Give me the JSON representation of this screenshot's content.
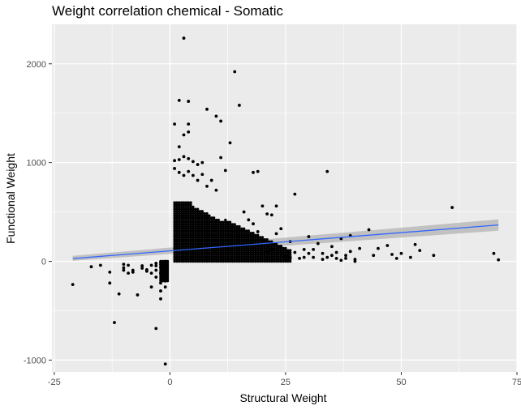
{
  "chart_data": {
    "type": "scatter",
    "title": "Weight correlation chemical - Somatic",
    "xlabel": "Structural Weight",
    "ylabel": "Functional Weight",
    "xlim": [
      -25.5,
      75
    ],
    "ylim": [
      -1120,
      2400
    ],
    "x_ticks": [
      -25,
      0,
      25,
      50,
      75
    ],
    "x_tick_labels": [
      "-25",
      "0",
      "25",
      "50",
      "75"
    ],
    "y_ticks": [
      -1000,
      0,
      1000,
      2000
    ],
    "y_tick_labels": [
      "-1000",
      "0",
      "1000",
      "2000"
    ],
    "grid": true,
    "legend": "none",
    "colors": {
      "panel": "#ebebeb",
      "grid": "#ffffff",
      "points": "#000000",
      "trend_line": "#3366ff",
      "confidence_band": "#b3b3b3"
    },
    "trend_line": {
      "method": "linear",
      "x": [
        -21,
        71
      ],
      "y": [
        28,
        368
      ],
      "ci_lower": [
        5,
        310
      ],
      "ci_upper": [
        55,
        425
      ]
    },
    "points": [
      [
        -21,
        -235
      ],
      [
        -17,
        -55
      ],
      [
        -15,
        -40
      ],
      [
        -13,
        -110
      ],
      [
        -13,
        -220
      ],
      [
        -12,
        -620
      ],
      [
        -11,
        -330
      ],
      [
        -10,
        -30
      ],
      [
        -10,
        -65
      ],
      [
        -10,
        -90
      ],
      [
        -9,
        -40
      ],
      [
        -9,
        -120
      ],
      [
        -8,
        -90
      ],
      [
        -8,
        -110
      ],
      [
        -7,
        -340
      ],
      [
        -6,
        -45
      ],
      [
        -6,
        -70
      ],
      [
        -5,
        -85
      ],
      [
        -5,
        -100
      ],
      [
        -4,
        -40
      ],
      [
        -4,
        -120
      ],
      [
        -4,
        -260
      ],
      [
        -3,
        -20
      ],
      [
        -3,
        -45
      ],
      [
        -3,
        -90
      ],
      [
        -3,
        -160
      ],
      [
        -3,
        -680
      ],
      [
        -2,
        -5
      ],
      [
        -2,
        -30
      ],
      [
        -2,
        -60
      ],
      [
        -2,
        -120
      ],
      [
        -2,
        -220
      ],
      [
        -2,
        -300
      ],
      [
        -2,
        -380
      ],
      [
        -1,
        0
      ],
      [
        -1,
        -15
      ],
      [
        -1,
        -40
      ],
      [
        -1,
        -80
      ],
      [
        -1,
        -140
      ],
      [
        -1,
        -200
      ],
      [
        -1,
        -260
      ],
      [
        -1,
        -1040
      ],
      [
        1,
        1390
      ],
      [
        1,
        1020
      ],
      [
        1,
        940
      ],
      [
        2,
        1630
      ],
      [
        2,
        1160
      ],
      [
        2,
        1030
      ],
      [
        2,
        900
      ],
      [
        3,
        2260
      ],
      [
        3,
        1280
      ],
      [
        3,
        1060
      ],
      [
        3,
        870
      ],
      [
        4,
        1620
      ],
      [
        4,
        1390
      ],
      [
        4,
        1310
      ],
      [
        4,
        1040
      ],
      [
        4,
        910
      ],
      [
        5,
        1010
      ],
      [
        5,
        870
      ],
      [
        6,
        980
      ],
      [
        6,
        820
      ],
      [
        7,
        1000
      ],
      [
        7,
        880
      ],
      [
        8,
        1540
      ],
      [
        8,
        760
      ],
      [
        9,
        820
      ],
      [
        10,
        1470
      ],
      [
        10,
        720
      ],
      [
        11,
        1420
      ],
      [
        11,
        1050
      ],
      [
        12,
        920
      ],
      [
        13,
        1200
      ],
      [
        14,
        1920
      ],
      [
        15,
        1580
      ],
      [
        18,
        900
      ],
      [
        19,
        910
      ],
      [
        23,
        560
      ],
      [
        27,
        680
      ],
      [
        34,
        910
      ],
      [
        61,
        545
      ],
      [
        70,
        80
      ],
      [
        71,
        15
      ],
      [
        43,
        320
      ],
      [
        39,
        260
      ],
      [
        37,
        230
      ],
      [
        32,
        180
      ],
      [
        30,
        250
      ],
      [
        29,
        120
      ],
      [
        35,
        150
      ],
      [
        40,
        0
      ],
      [
        45,
        130
      ],
      [
        47,
        160
      ],
      [
        48,
        70
      ],
      [
        49,
        30
      ],
      [
        50,
        80
      ],
      [
        53,
        170
      ],
      [
        54,
        110
      ],
      [
        57,
        60
      ],
      [
        52,
        40
      ],
      [
        44,
        60
      ],
      [
        41,
        130
      ],
      [
        38,
        60
      ],
      [
        36,
        30
      ],
      [
        33,
        80
      ],
      [
        31,
        40
      ],
      [
        28,
        30
      ],
      [
        27,
        90
      ],
      [
        26,
        40
      ],
      [
        25,
        20
      ],
      [
        24,
        330
      ],
      [
        22,
        470
      ],
      [
        20,
        560
      ],
      [
        21,
        480
      ],
      [
        17,
        420
      ],
      [
        16,
        500
      ],
      [
        18,
        380
      ],
      [
        19,
        300
      ],
      [
        23,
        280
      ],
      [
        24,
        150
      ],
      [
        22,
        120
      ],
      [
        20,
        200
      ],
      [
        21,
        100
      ],
      [
        25,
        60
      ],
      [
        26,
        200
      ],
      [
        29,
        40
      ],
      [
        30,
        80
      ],
      [
        31,
        120
      ],
      [
        33,
        20
      ],
      [
        34,
        40
      ],
      [
        35,
        60
      ],
      [
        36,
        90
      ],
      [
        38,
        30
      ],
      [
        39,
        100
      ],
      [
        40,
        20
      ],
      [
        37,
        10
      ]
    ]
  }
}
